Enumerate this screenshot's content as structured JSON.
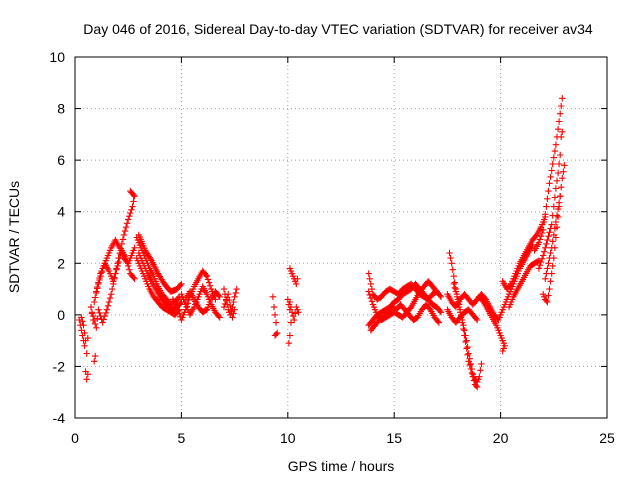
{
  "chart_data": {
    "type": "scatter",
    "title": "Day 046 of 2016, Sidereal Day-to-day VTEC variation (SDTVAR) for receiver av34",
    "xlabel": "GPS time / hours",
    "ylabel": "SDTVAR / TECUs",
    "xlim": [
      0,
      25
    ],
    "ylim": [
      -4,
      10
    ],
    "xticks": [
      0,
      5,
      10,
      15,
      20,
      25
    ],
    "yticks": [
      -4,
      -2,
      0,
      2,
      4,
      6,
      8,
      10
    ],
    "grid": true,
    "marker": "+",
    "color": "#ff0000",
    "tracks": [
      [
        [
          0.2,
          -0.2
        ],
        [
          0.35,
          -0.8
        ],
        [
          0.45,
          -1.2
        ],
        [
          0.5,
          -2.2
        ],
        [
          0.55,
          -2.5
        ],
        [
          0.6,
          -2.3
        ]
      ],
      [
        [
          0.3,
          -0.1
        ],
        [
          0.4,
          -0.4
        ],
        [
          0.5,
          -1.0
        ],
        [
          0.55,
          -1.5
        ],
        [
          0.6,
          -0.9
        ]
      ],
      [
        [
          0.75,
          0.3
        ],
        [
          0.85,
          -0.2
        ],
        [
          0.9,
          -1.8
        ],
        [
          0.95,
          -1.6
        ]
      ],
      [
        [
          0.8,
          0.1
        ],
        [
          1.0,
          -0.5
        ],
        [
          1.1,
          0.2
        ],
        [
          1.3,
          -0.3
        ],
        [
          1.5,
          0.2
        ],
        [
          1.7,
          0.8
        ],
        [
          1.9,
          1.6
        ],
        [
          2.1,
          2.4
        ],
        [
          2.3,
          3.1
        ],
        [
          2.5,
          3.7
        ],
        [
          2.7,
          4.2
        ],
        [
          2.8,
          4.6
        ],
        [
          2.6,
          4.8
        ]
      ],
      [
        [
          0.9,
          0.5
        ],
        [
          1.1,
          1.2
        ],
        [
          1.3,
          1.8
        ],
        [
          1.5,
          2.2
        ],
        [
          1.7,
          2.6
        ],
        [
          1.9,
          2.9
        ],
        [
          2.1,
          2.6
        ],
        [
          2.3,
          2.2
        ],
        [
          2.5,
          2.0
        ],
        [
          2.7,
          2.4
        ],
        [
          2.8,
          2.6
        ]
      ],
      [
        [
          1.0,
          0.9
        ],
        [
          1.2,
          1.6
        ],
        [
          1.4,
          2.0
        ],
        [
          1.6,
          1.7
        ],
        [
          1.8,
          1.3
        ],
        [
          2.0,
          1.9
        ],
        [
          2.2,
          2.5
        ],
        [
          2.4,
          2.2
        ],
        [
          2.6,
          1.6
        ],
        [
          2.8,
          1.4
        ]
      ],
      [
        [
          2.9,
          3.0
        ],
        [
          3.1,
          2.6
        ],
        [
          3.3,
          2.2
        ],
        [
          3.5,
          1.8
        ],
        [
          3.7,
          1.5
        ],
        [
          3.9,
          1.1
        ],
        [
          4.1,
          0.8
        ],
        [
          4.3,
          0.6
        ],
        [
          4.5,
          0.4
        ],
        [
          4.7,
          0.5
        ],
        [
          4.9,
          0.7
        ]
      ],
      [
        [
          2.9,
          2.2
        ],
        [
          3.1,
          1.8
        ],
        [
          3.3,
          1.4
        ],
        [
          3.5,
          1.0
        ],
        [
          3.7,
          0.7
        ],
        [
          3.9,
          0.5
        ],
        [
          4.1,
          0.3
        ],
        [
          4.3,
          0.2
        ],
        [
          4.5,
          0.1
        ],
        [
          4.7,
          0.0
        ],
        [
          4.9,
          0.2
        ]
      ],
      [
        [
          3.0,
          2.4
        ],
        [
          3.2,
          2.0
        ],
        [
          3.4,
          1.6
        ],
        [
          3.6,
          1.3
        ],
        [
          3.8,
          1.0
        ],
        [
          4.0,
          0.7
        ],
        [
          4.2,
          0.5
        ],
        [
          4.4,
          0.3
        ],
        [
          4.6,
          0.2
        ],
        [
          4.8,
          0.3
        ],
        [
          5.0,
          0.5
        ]
      ],
      [
        [
          3.0,
          3.1
        ],
        [
          3.3,
          2.5
        ],
        [
          3.6,
          2.1
        ],
        [
          3.9,
          1.6
        ],
        [
          4.2,
          1.2
        ],
        [
          4.5,
          0.9
        ],
        [
          4.8,
          1.0
        ],
        [
          5.0,
          1.2
        ]
      ],
      [
        [
          4.6,
          0.6
        ],
        [
          4.8,
          0.3
        ],
        [
          5.0,
          -0.2
        ],
        [
          5.2,
          0.2
        ],
        [
          5.4,
          0.7
        ],
        [
          5.6,
          1.1
        ],
        [
          5.8,
          1.4
        ],
        [
          6.0,
          1.7
        ],
        [
          6.2,
          1.5
        ],
        [
          6.4,
          1.0
        ],
        [
          6.6,
          0.6
        ]
      ],
      [
        [
          5.0,
          0.8
        ],
        [
          5.2,
          0.4
        ],
        [
          5.4,
          0.0
        ],
        [
          5.6,
          0.3
        ],
        [
          5.8,
          0.7
        ],
        [
          6.0,
          1.1
        ],
        [
          6.2,
          0.8
        ],
        [
          6.4,
          0.4
        ],
        [
          6.6,
          0.1
        ],
        [
          6.8,
          -0.1
        ]
      ],
      [
        [
          5.2,
          0.6
        ],
        [
          5.4,
          0.9
        ],
        [
          5.6,
          0.6
        ],
        [
          5.8,
          0.3
        ],
        [
          6.0,
          0.1
        ],
        [
          6.2,
          0.2
        ],
        [
          6.4,
          0.6
        ],
        [
          6.6,
          0.9
        ],
        [
          6.8,
          0.7
        ]
      ],
      [
        [
          7.0,
          1.0
        ],
        [
          7.1,
          0.6
        ],
        [
          7.2,
          0.2
        ],
        [
          7.3,
          0.0
        ],
        [
          7.4,
          0.3
        ],
        [
          7.5,
          0.7
        ],
        [
          7.6,
          1.0
        ]
      ],
      [
        [
          7.0,
          0.3
        ],
        [
          7.2,
          0.8
        ],
        [
          7.4,
          -0.1
        ],
        [
          7.5,
          0.2
        ]
      ],
      [
        [
          9.3,
          0.7
        ],
        [
          9.35,
          0.3
        ],
        [
          9.4,
          0.0
        ],
        [
          9.45,
          -0.3
        ],
        [
          9.5,
          -0.7
        ],
        [
          9.4,
          -0.8
        ]
      ],
      [
        [
          10.0,
          0.6
        ],
        [
          10.1,
          0.2
        ],
        [
          10.15,
          -0.3
        ],
        [
          10.1,
          -0.8
        ],
        [
          10.05,
          -1.1
        ]
      ],
      [
        [
          10.1,
          0.5
        ],
        [
          10.2,
          0.1
        ],
        [
          10.3,
          -0.2
        ],
        [
          10.4,
          0.3
        ],
        [
          10.5,
          0.1
        ]
      ],
      [
        [
          10.1,
          1.8
        ],
        [
          10.2,
          1.6
        ],
        [
          10.3,
          1.4
        ],
        [
          10.4,
          1.2
        ],
        [
          10.45,
          1.4
        ]
      ],
      [
        [
          13.8,
          1.6
        ],
        [
          13.9,
          1.2
        ],
        [
          14.0,
          0.8
        ],
        [
          14.2,
          0.6
        ],
        [
          14.4,
          0.7
        ],
        [
          14.6,
          0.9
        ],
        [
          14.8,
          1.0
        ],
        [
          15.0,
          0.9
        ],
        [
          15.2,
          0.8
        ],
        [
          15.4,
          1.0
        ],
        [
          15.6,
          1.1
        ],
        [
          15.8,
          1.2
        ],
        [
          16.0,
          1.0
        ],
        [
          16.2,
          0.8
        ],
        [
          16.4,
          0.7
        ],
        [
          16.6,
          0.6
        ],
        [
          16.8,
          0.8
        ],
        [
          17.0,
          0.9
        ],
        [
          17.2,
          0.7
        ]
      ],
      [
        [
          13.8,
          -0.4
        ],
        [
          14.0,
          -0.2
        ],
        [
          14.2,
          0.0
        ],
        [
          14.4,
          0.1
        ],
        [
          14.6,
          0.2
        ],
        [
          14.8,
          0.3
        ],
        [
          15.0,
          0.5
        ],
        [
          15.2,
          0.6
        ],
        [
          15.4,
          0.8
        ],
        [
          15.6,
          0.9
        ],
        [
          15.8,
          1.0
        ],
        [
          16.0,
          1.2
        ],
        [
          16.2,
          1.0
        ],
        [
          16.4,
          0.8
        ],
        [
          16.6,
          0.6
        ],
        [
          16.8,
          0.4
        ],
        [
          17.0,
          0.3
        ],
        [
          17.2,
          0.1
        ]
      ],
      [
        [
          13.8,
          0.9
        ],
        [
          14.0,
          0.4
        ],
        [
          14.2,
          0.0
        ],
        [
          14.4,
          -0.2
        ],
        [
          14.6,
          -0.1
        ],
        [
          14.8,
          0.0
        ],
        [
          15.0,
          0.1
        ],
        [
          15.2,
          0.0
        ],
        [
          15.4,
          -0.1
        ],
        [
          15.6,
          0.1
        ],
        [
          15.8,
          0.3
        ],
        [
          16.0,
          0.6
        ],
        [
          16.2,
          0.9
        ],
        [
          16.4,
          1.1
        ],
        [
          16.6,
          1.3
        ],
        [
          16.8,
          1.1
        ],
        [
          17.0,
          0.9
        ]
      ],
      [
        [
          13.9,
          -0.6
        ],
        [
          14.1,
          -0.4
        ],
        [
          14.3,
          -0.2
        ],
        [
          14.5,
          -0.1
        ],
        [
          14.7,
          0.1
        ],
        [
          14.9,
          0.3
        ],
        [
          15.1,
          0.2
        ],
        [
          15.3,
          0.4
        ],
        [
          15.5,
          0.2
        ],
        [
          15.7,
          0.0
        ],
        [
          15.9,
          -0.2
        ],
        [
          16.1,
          -0.1
        ],
        [
          16.3,
          0.2
        ],
        [
          16.5,
          0.4
        ],
        [
          16.7,
          0.2
        ],
        [
          16.9,
          -0.1
        ],
        [
          17.1,
          -0.3
        ]
      ],
      [
        [
          17.6,
          2.4
        ],
        [
          17.7,
          2.0
        ],
        [
          17.8,
          1.5
        ],
        [
          17.9,
          1.0
        ],
        [
          18.0,
          0.6
        ],
        [
          18.1,
          0.2
        ],
        [
          18.2,
          -0.2
        ],
        [
          18.3,
          -0.6
        ],
        [
          18.4,
          -1.0
        ],
        [
          18.5,
          -1.5
        ],
        [
          18.6,
          -1.9
        ],
        [
          18.7,
          -2.3
        ],
        [
          18.8,
          -2.5
        ],
        [
          18.9,
          -2.6
        ],
        [
          19.0,
          -2.4
        ],
        [
          19.1,
          -1.9
        ]
      ],
      [
        [
          17.8,
          1.2
        ],
        [
          17.9,
          0.9
        ],
        [
          18.0,
          0.5
        ],
        [
          18.1,
          0.1
        ],
        [
          18.2,
          -0.3
        ],
        [
          18.3,
          -0.8
        ],
        [
          18.4,
          -1.3
        ],
        [
          18.5,
          -1.8
        ],
        [
          18.6,
          -2.1
        ],
        [
          18.7,
          -2.4
        ],
        [
          18.8,
          -2.7
        ],
        [
          18.9,
          -2.8
        ]
      ],
      [
        [
          17.5,
          0.8
        ],
        [
          17.7,
          0.5
        ],
        [
          17.9,
          0.3
        ],
        [
          18.1,
          0.6
        ],
        [
          18.3,
          0.8
        ],
        [
          18.5,
          0.6
        ],
        [
          18.7,
          0.4
        ],
        [
          18.9,
          0.6
        ],
        [
          19.1,
          0.8
        ],
        [
          19.3,
          0.6
        ]
      ],
      [
        [
          17.5,
          0.2
        ],
        [
          17.7,
          -0.1
        ],
        [
          17.9,
          -0.3
        ],
        [
          18.1,
          -0.1
        ],
        [
          18.3,
          0.1
        ],
        [
          18.5,
          0.2
        ],
        [
          18.7,
          0.0
        ],
        [
          18.9,
          -0.2
        ]
      ],
      [
        [
          19.0,
          0.7
        ],
        [
          19.2,
          0.5
        ],
        [
          19.4,
          0.2
        ],
        [
          19.6,
          -0.1
        ],
        [
          19.8,
          -0.4
        ],
        [
          20.0,
          -0.8
        ],
        [
          20.2,
          -1.2
        ],
        [
          20.1,
          -1.4
        ]
      ],
      [
        [
          19.3,
          0.6
        ],
        [
          19.5,
          0.3
        ],
        [
          19.7,
          0.0
        ],
        [
          19.9,
          -0.2
        ],
        [
          20.1,
          0.2
        ],
        [
          20.3,
          0.6
        ],
        [
          20.5,
          1.0
        ],
        [
          20.7,
          1.4
        ],
        [
          20.9,
          1.8
        ],
        [
          21.1,
          2.1
        ],
        [
          21.3,
          2.4
        ],
        [
          21.5,
          2.7
        ]
      ],
      [
        [
          20.1,
          1.3
        ],
        [
          20.3,
          1.0
        ],
        [
          20.5,
          1.2
        ],
        [
          20.7,
          1.6
        ],
        [
          20.9,
          2.0
        ],
        [
          21.1,
          2.3
        ],
        [
          21.3,
          2.6
        ],
        [
          21.5,
          2.9
        ],
        [
          21.7,
          3.1
        ],
        [
          21.9,
          3.4
        ],
        [
          22.1,
          3.8
        ]
      ],
      [
        [
          20.4,
          0.3
        ],
        [
          20.6,
          0.7
        ],
        [
          20.8,
          1.0
        ],
        [
          21.0,
          1.3
        ],
        [
          21.2,
          1.6
        ],
        [
          21.4,
          1.9
        ],
        [
          21.6,
          2.0
        ],
        [
          21.8,
          2.1
        ]
      ],
      [
        [
          21.6,
          2.5
        ],
        [
          21.8,
          2.8
        ],
        [
          22.0,
          3.3
        ],
        [
          22.1,
          3.9
        ],
        [
          22.2,
          4.5
        ],
        [
          22.3,
          5.1
        ],
        [
          22.4,
          5.6
        ],
        [
          22.5,
          6.1
        ],
        [
          22.6,
          6.6
        ],
        [
          22.7,
          7.2
        ],
        [
          22.8,
          7.8
        ],
        [
          22.9,
          8.4
        ]
      ],
      [
        [
          21.8,
          1.8
        ],
        [
          22.0,
          2.3
        ],
        [
          22.2,
          2.9
        ],
        [
          22.4,
          3.5
        ],
        [
          22.5,
          4.2
        ],
        [
          22.6,
          4.9
        ],
        [
          22.7,
          5.5
        ],
        [
          22.8,
          6.2
        ],
        [
          22.85,
          6.9
        ],
        [
          22.9,
          7.1
        ]
      ],
      [
        [
          22.0,
          0.8
        ],
        [
          22.1,
          0.6
        ],
        [
          22.2,
          0.5
        ],
        [
          22.3,
          1.0
        ],
        [
          22.4,
          1.6
        ],
        [
          22.5,
          2.2
        ],
        [
          22.6,
          3.0
        ],
        [
          22.7,
          3.8
        ],
        [
          22.8,
          4.6
        ],
        [
          22.9,
          5.3
        ],
        [
          23.0,
          5.8
        ]
      ],
      [
        [
          22.1,
          1.4
        ],
        [
          22.2,
          1.8
        ],
        [
          22.3,
          2.2
        ],
        [
          22.4,
          2.6
        ],
        [
          22.5,
          3.1
        ],
        [
          22.6,
          3.6
        ],
        [
          22.7,
          4.1
        ],
        [
          22.8,
          4.6
        ]
      ]
    ]
  }
}
